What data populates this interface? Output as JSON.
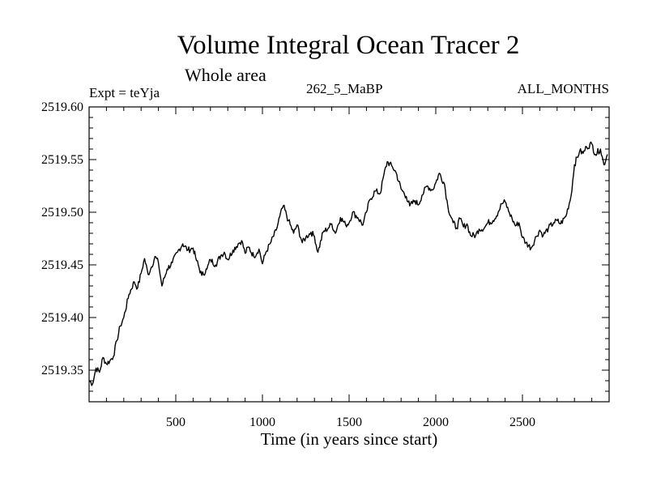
{
  "chart_data": {
    "type": "line",
    "title": "Volume Integral Ocean Tracer 2",
    "subtitle": "Whole area",
    "experiment_label": "Expt = teYja",
    "run_label": "262_5_MaBP",
    "period_label": "ALL_MONTHS",
    "xlabel": "Time (in years since start)",
    "ylabel": "",
    "xlim": [
      0,
      3000
    ],
    "ylim": [
      2519.32,
      2519.6
    ],
    "x_ticks": [
      500,
      1000,
      1500,
      2000,
      2500
    ],
    "x_tick_labels": [
      "500",
      "1000",
      "1500",
      "2000",
      "2500"
    ],
    "y_ticks": [
      2519.35,
      2519.4,
      2519.45,
      2519.5,
      2519.55,
      2519.6
    ],
    "y_tick_labels": [
      "2519.35",
      "2519.40",
      "2519.45",
      "2519.50",
      "2519.55",
      "2519.60"
    ],
    "grid": false,
    "series": [
      {
        "name": "Volume Integral Ocean Tracer 2",
        "x": [
          0,
          20,
          40,
          60,
          80,
          100,
          120,
          140,
          160,
          180,
          200,
          230,
          260,
          280,
          300,
          320,
          340,
          360,
          380,
          400,
          420,
          450,
          480,
          510,
          540,
          570,
          600,
          620,
          650,
          680,
          700,
          730,
          760,
          780,
          800,
          830,
          860,
          880,
          900,
          920,
          950,
          980,
          1000,
          1020,
          1050,
          1080,
          1100,
          1120,
          1150,
          1180,
          1200,
          1230,
          1250,
          1280,
          1300,
          1320,
          1350,
          1380,
          1400,
          1420,
          1450,
          1480,
          1500,
          1520,
          1550,
          1580,
          1600,
          1620,
          1650,
          1680,
          1700,
          1720,
          1750,
          1770,
          1800,
          1830,
          1850,
          1880,
          1900,
          1920,
          1950,
          1980,
          2000,
          2020,
          2050,
          2070,
          2100,
          2120,
          2140,
          2160,
          2180,
          2200,
          2230,
          2250,
          2280,
          2300,
          2330,
          2360,
          2380,
          2400,
          2420,
          2440,
          2460,
          2480,
          2500,
          2520,
          2550,
          2580,
          2600,
          2620,
          2650,
          2680,
          2700,
          2720,
          2750,
          2780,
          2800,
          2830,
          2850,
          2870,
          2900,
          2920,
          2950,
          2970,
          2990
        ],
        "y": [
          2519.34,
          2519.337,
          2519.352,
          2519.348,
          2519.362,
          2519.356,
          2519.359,
          2519.363,
          2519.378,
          2519.392,
          2519.4,
          2519.422,
          2519.434,
          2519.428,
          2519.442,
          2519.456,
          2519.441,
          2519.448,
          2519.458,
          2519.452,
          2519.43,
          2519.446,
          2519.452,
          2519.462,
          2519.47,
          2519.464,
          2519.466,
          2519.454,
          2519.44,
          2519.446,
          2519.455,
          2519.45,
          2519.459,
          2519.462,
          2519.455,
          2519.464,
          2519.47,
          2519.473,
          2519.461,
          2519.467,
          2519.458,
          2519.465,
          2519.451,
          2519.462,
          2519.472,
          2519.483,
          2519.496,
          2519.506,
          2519.492,
          2519.48,
          2519.488,
          2519.471,
          2519.476,
          2519.481,
          2519.477,
          2519.462,
          2519.481,
          2519.485,
          2519.489,
          2519.48,
          2519.495,
          2519.488,
          2519.49,
          2519.5,
          2519.495,
          2519.488,
          2519.5,
          2519.512,
          2519.52,
          2519.518,
          2519.535,
          2519.548,
          2519.543,
          2519.538,
          2519.522,
          2519.515,
          2519.506,
          2519.511,
          2519.507,
          2519.516,
          2519.525,
          2519.521,
          2519.528,
          2519.537,
          2519.527,
          2519.505,
          2519.49,
          2519.485,
          2519.494,
          2519.486,
          2519.489,
          2519.478,
          2519.478,
          2519.484,
          2519.485,
          2519.49,
          2519.492,
          2519.5,
          2519.508,
          2519.51,
          2519.501,
          2519.494,
          2519.487,
          2519.49,
          2519.476,
          2519.471,
          2519.466,
          2519.477,
          2519.483,
          2519.478,
          2519.485,
          2519.49,
          2519.492,
          2519.489,
          2519.496,
          2519.515,
          2519.545,
          2519.558,
          2519.556,
          2519.562,
          2519.565,
          2519.555,
          2519.56,
          2519.545,
          2519.555
        ]
      }
    ]
  }
}
